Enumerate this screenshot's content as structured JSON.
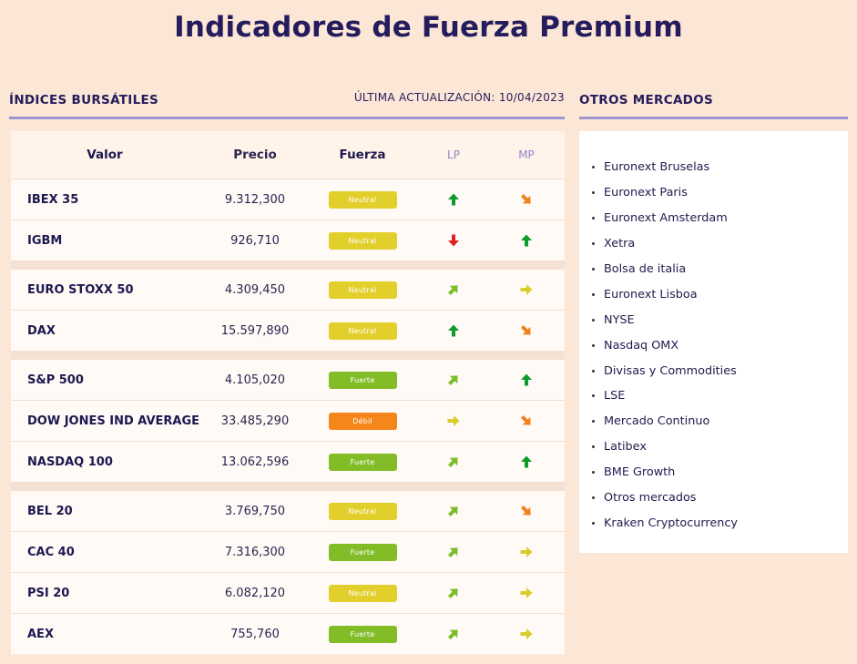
{
  "page": {
    "title": "Indicadores de Fuerza Premium"
  },
  "indices": {
    "heading": "ÍNDICES BURSÁTILES",
    "updated": "ÚLTIMA ACTUALIZACIÓN: 10/04/2023",
    "columns": {
      "valor": "Valor",
      "precio": "Precio",
      "fuerza": "Fuerza",
      "lp": "LP",
      "mp": "MP"
    },
    "colors": {
      "neutral": "#e2cf2b",
      "fuerte": "#82bd27",
      "debil": "#f5861a",
      "arrow_up": "#0e9a2c",
      "arrow_down": "#e02020",
      "arrow_diag_up": "#7cbc2a",
      "arrow_right": "#d9cc2b",
      "arrow_diag_down": "#f0821c"
    },
    "groups": [
      [
        {
          "name": "IBEX 35",
          "price": "9.312,300",
          "force": "Neutral",
          "level": "neutral",
          "lp": "up",
          "mp": "diag-down"
        },
        {
          "name": "IGBM",
          "price": "926,710",
          "force": "Neutral",
          "level": "neutral",
          "lp": "down",
          "mp": "up"
        }
      ],
      [
        {
          "name": "EURO STOXX 50",
          "price": "4.309,450",
          "force": "Neutral",
          "level": "neutral",
          "lp": "diag-up",
          "mp": "right"
        },
        {
          "name": "DAX",
          "price": "15.597,890",
          "force": "Neutral",
          "level": "neutral",
          "lp": "up",
          "mp": "diag-down"
        }
      ],
      [
        {
          "name": "S&P 500",
          "price": "4.105,020",
          "force": "Fuerte",
          "level": "fuerte",
          "lp": "diag-up",
          "mp": "up"
        },
        {
          "name": "DOW JONES IND AVERAGE",
          "price": "33.485,290",
          "force": "Débil",
          "level": "debil",
          "lp": "right",
          "mp": "diag-down"
        },
        {
          "name": "NASDAQ 100",
          "price": "13.062,596",
          "force": "Fuerte",
          "level": "fuerte",
          "lp": "diag-up",
          "mp": "up"
        }
      ],
      [
        {
          "name": "BEL 20",
          "price": "3.769,750",
          "force": "Neutral",
          "level": "neutral",
          "lp": "diag-up",
          "mp": "diag-down"
        },
        {
          "name": "CAC 40",
          "price": "7.316,300",
          "force": "Fuerte",
          "level": "fuerte",
          "lp": "diag-up",
          "mp": "right"
        },
        {
          "name": "PSI 20",
          "price": "6.082,120",
          "force": "Neutral",
          "level": "neutral",
          "lp": "diag-up",
          "mp": "right"
        },
        {
          "name": "AEX",
          "price": "755,760",
          "force": "Fuerte",
          "level": "fuerte",
          "lp": "diag-up",
          "mp": "right"
        }
      ]
    ]
  },
  "other_markets": {
    "heading": "OTROS MERCADOS",
    "items": [
      "Euronext Bruselas",
      "Euronext Paris",
      "Euronext Amsterdam",
      "Xetra",
      "Bolsa de italia",
      "Euronext Lisboa",
      "NYSE",
      "Nasdaq OMX",
      "Divisas y Commodities",
      "LSE",
      "Mercado Continuo",
      "Latibex",
      "BME Growth",
      "Otros mercados",
      "Kraken Cryptocurrency"
    ]
  }
}
